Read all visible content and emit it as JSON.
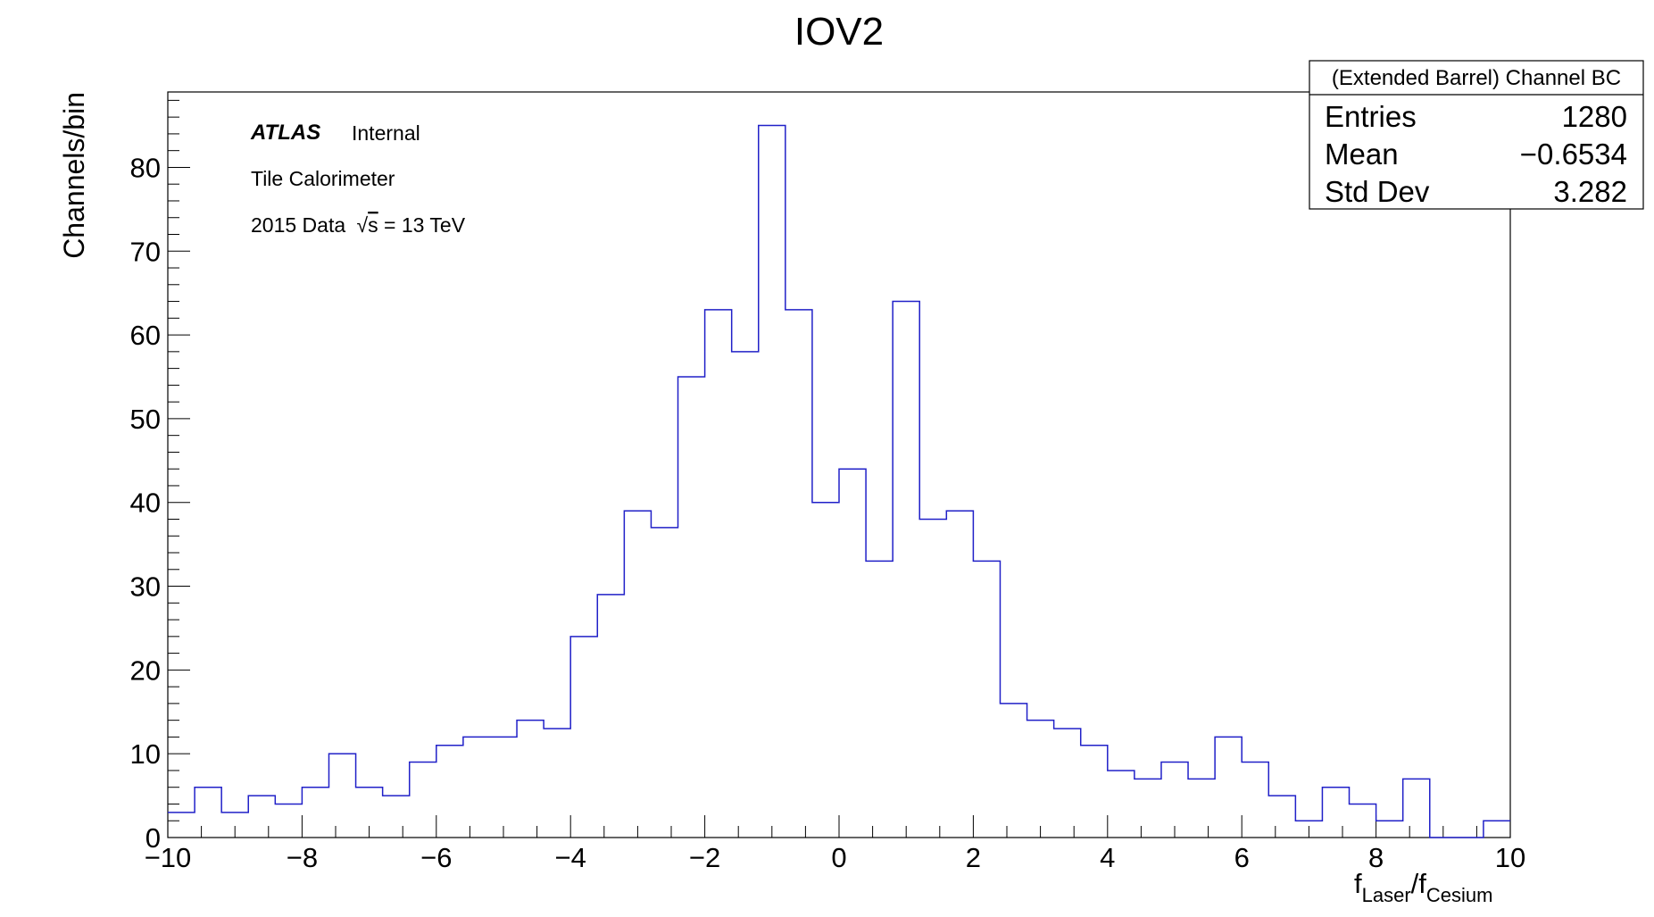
{
  "chart_data": {
    "type": "histogram",
    "title": "IOV2",
    "ylabel": "Channels/bin",
    "xlabel": {
      "main_1": "f",
      "sub_1": "Laser",
      "sep": "/",
      "main_2": "f",
      "sub_2": "Cesium"
    },
    "xlim": [
      -10,
      10
    ],
    "ylim": [
      0,
      89
    ],
    "bin_width": 0.4,
    "line_color": "#2020c8",
    "x_ticks": [
      "−10",
      "−8",
      "−6",
      "−4",
      "−2",
      "0",
      "2",
      "4",
      "6",
      "8",
      "10"
    ],
    "y_ticks": [
      "0",
      "10",
      "20",
      "30",
      "40",
      "50",
      "60",
      "70",
      "80"
    ],
    "bin_edges_start": -10,
    "counts": [
      3,
      6,
      3,
      5,
      4,
      6,
      10,
      6,
      5,
      9,
      11,
      12,
      12,
      14,
      13,
      24,
      29,
      39,
      37,
      55,
      63,
      58,
      85,
      63,
      40,
      44,
      33,
      64,
      38,
      39,
      33,
      16,
      14,
      13,
      11,
      8,
      7,
      9,
      7,
      12,
      9,
      5,
      2,
      6,
      4,
      2,
      7,
      0,
      0,
      2
    ],
    "annotations": {
      "atlas": "ATLAS",
      "internal": "Internal",
      "detector": "Tile Calorimeter",
      "data_prefix": "2015 Data",
      "energy_sqrt": "√",
      "energy_var": "s",
      "energy_value": "= 13 TeV"
    },
    "stats_box": {
      "title": "(Extended Barrel) Channel BC",
      "rows": [
        {
          "label": "Entries",
          "value": "1280"
        },
        {
          "label": "Mean",
          "value": "−0.6534"
        },
        {
          "label": "Std Dev",
          "value": "3.282"
        }
      ]
    }
  }
}
